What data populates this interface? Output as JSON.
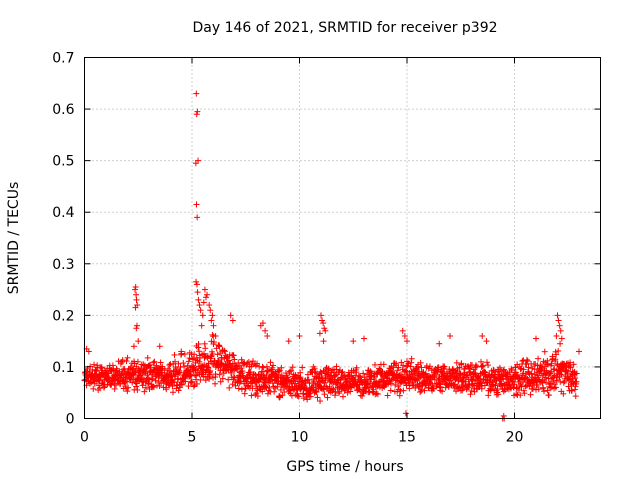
{
  "chart_data": {
    "type": "scatter",
    "title": "Day 146 of 2021, SRMTID for receiver p392",
    "xlabel": "GPS time / hours",
    "ylabel": "SRMTID / TECUs",
    "xlim": [
      0,
      24
    ],
    "ylim": [
      0,
      0.7
    ],
    "xticks": [
      0,
      5,
      10,
      15,
      20
    ],
    "yticks": [
      0,
      0.1,
      0.2,
      0.3,
      0.4,
      0.5,
      0.6,
      0.7
    ],
    "xtick_labels": [
      "0",
      "5",
      "10",
      "15",
      "20"
    ],
    "ytick_labels": [
      "0",
      "0.1",
      "0.2",
      "0.3",
      "0.4",
      "0.5",
      "0.6",
      "0.7"
    ],
    "grid": true,
    "marker": "+",
    "marker_color": "#ff0000",
    "baseline_envelope": {
      "description": "dense noise band of points",
      "x": [
        0,
        1,
        2,
        3,
        4,
        5,
        6,
        7,
        8,
        9,
        10,
        11,
        12,
        13,
        14,
        15,
        16,
        17,
        18,
        19,
        20,
        21,
        22,
        23
      ],
      "low": [
        0.05,
        0.05,
        0.05,
        0.05,
        0.05,
        0.05,
        0.06,
        0.05,
        0.04,
        0.04,
        0.03,
        0.03,
        0.04,
        0.04,
        0.04,
        0.04,
        0.05,
        0.05,
        0.04,
        0.04,
        0.04,
        0.04,
        0.04,
        0.04
      ],
      "high": [
        0.11,
        0.11,
        0.12,
        0.12,
        0.12,
        0.14,
        0.17,
        0.13,
        0.12,
        0.11,
        0.1,
        0.11,
        0.1,
        0.1,
        0.11,
        0.12,
        0.11,
        0.11,
        0.12,
        0.11,
        0.11,
        0.13,
        0.14,
        0.11
      ]
    },
    "series": [
      {
        "name": "SRMTID",
        "x": [
          5.2,
          5.22,
          5.25,
          5.28,
          5.18,
          5.21,
          5.24,
          5.19,
          5.23,
          5.26,
          5.3,
          5.35,
          5.4,
          5.5,
          5.6,
          5.7,
          5.8,
          5.9,
          6.0,
          6.1,
          5.95,
          5.85,
          5.65,
          5.55,
          5.45,
          2.35,
          2.38,
          2.4,
          2.42,
          2.45,
          2.37,
          2.41,
          2.44,
          2.5,
          2.3,
          11.0,
          11.05,
          11.1,
          11.15,
          11.2,
          10.95,
          11.12,
          22.0,
          22.05,
          22.1,
          22.15,
          22.2,
          21.95,
          22.12,
          8.2,
          8.3,
          8.4,
          8.5,
          6.8,
          6.9,
          14.8,
          14.9,
          15.0,
          18.5,
          18.7,
          19.45,
          19.5,
          19.52,
          14.95,
          10.0,
          13.0,
          17.0,
          21.0,
          0.1,
          0.2,
          9.5,
          12.5,
          16.5,
          23.0,
          3.5,
          4.5
        ],
        "y": [
          0.63,
          0.59,
          0.595,
          0.5,
          0.495,
          0.415,
          0.39,
          0.265,
          0.26,
          0.245,
          0.23,
          0.22,
          0.21,
          0.2,
          0.25,
          0.24,
          0.22,
          0.19,
          0.18,
          0.16,
          0.2,
          0.21,
          0.235,
          0.225,
          0.18,
          0.25,
          0.255,
          0.24,
          0.23,
          0.22,
          0.215,
          0.175,
          0.18,
          0.15,
          0.14,
          0.2,
          0.19,
          0.185,
          0.175,
          0.17,
          0.165,
          0.15,
          0.2,
          0.19,
          0.18,
          0.17,
          0.155,
          0.16,
          0.145,
          0.18,
          0.185,
          0.17,
          0.16,
          0.2,
          0.19,
          0.17,
          0.16,
          0.15,
          0.16,
          0.15,
          0.0,
          0.005,
          0.0,
          0.01,
          0.16,
          0.155,
          0.16,
          0.155,
          0.135,
          0.13,
          0.15,
          0.15,
          0.145,
          0.13,
          0.14,
          0.13
        ]
      }
    ]
  }
}
